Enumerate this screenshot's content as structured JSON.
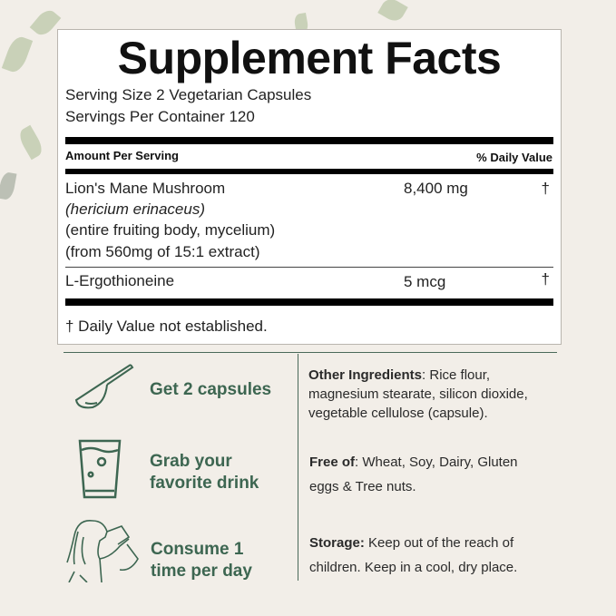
{
  "colors": {
    "background": "#f2eee8",
    "accent_green": "#3d6651",
    "panel": "#ffffff"
  },
  "facts": {
    "title": "Supplement Facts",
    "serving_size": "Serving Size 2 Vegetarian Capsules",
    "servings_per_container": "Servings Per Container 120",
    "amount_header": "Amount Per Serving",
    "dv_header": "% Daily Value",
    "rows": [
      {
        "lines": [
          "Lion's Mane Mushroom",
          "(hericium erinaceus)",
          "(entire fruiting body, mycelium)",
          "(from 560mg of 15:1 extract)"
        ],
        "amount": "8,400 mg",
        "dv": "†"
      },
      {
        "lines": [
          "L-Ergothioneine"
        ],
        "amount": "5 mcg",
        "dv": "†"
      }
    ],
    "footnote": "† Daily Value not established."
  },
  "steps": [
    {
      "icon": "scoop-icon",
      "lines": [
        "Get 2 capsules"
      ]
    },
    {
      "icon": "glass-icon",
      "lines": [
        "Grab your",
        "favorite drink"
      ]
    },
    {
      "icon": "woman-drinking-icon",
      "lines": [
        "Consume 1",
        "time per day"
      ]
    }
  ],
  "info": [
    {
      "label": "Other Ingredients",
      "sep": ":",
      "lines": [
        " Rice flour,",
        "magnesium stearate, silicon dioxide,",
        "vegetable cellulose (capsule)."
      ]
    },
    {
      "label": "Free of",
      "sep": ":",
      "lines": [
        " Wheat, Soy, Dairy, Gluten",
        "eggs & Tree nuts."
      ]
    },
    {
      "label": "Storage:",
      "sep": "",
      "lines": [
        " Keep out of the reach of",
        "children. Keep in a cool, dry place."
      ]
    }
  ]
}
